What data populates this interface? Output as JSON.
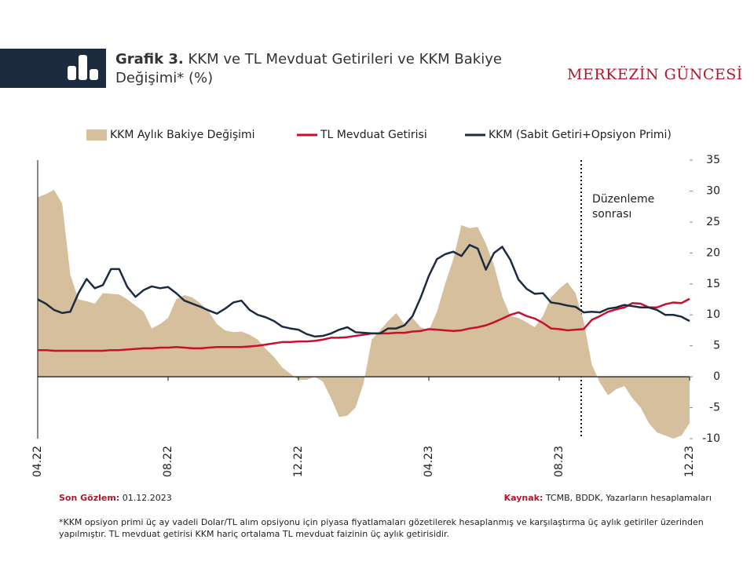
{
  "header": {
    "title_prefix": "Grafik 3.",
    "title": "KKM ve TL Mevduat Getirileri ve KKM Bakiye Değişimi* (%)",
    "brand": "MERKEZİN GÜNCESİ"
  },
  "chart_data": {
    "type": "line",
    "categories": [
      "04.22",
      null,
      null,
      null,
      null,
      null,
      null,
      null,
      null,
      null,
      null,
      null,
      null,
      null,
      null,
      null,
      "08.22",
      null,
      null,
      null,
      null,
      null,
      null,
      null,
      null,
      null,
      null,
      null,
      null,
      null,
      null,
      null,
      "12.22",
      null,
      null,
      null,
      null,
      null,
      null,
      null,
      null,
      null,
      null,
      null,
      null,
      null,
      null,
      null,
      "04.23",
      null,
      null,
      null,
      null,
      null,
      null,
      null,
      null,
      null,
      null,
      null,
      null,
      null,
      null,
      null,
      "08.23",
      null,
      null,
      null,
      null,
      null,
      null,
      null,
      null,
      null,
      null,
      null,
      null,
      null,
      null,
      null,
      "12.23"
    ],
    "series": [
      {
        "name": "KKM Aylık Bakiye Değişimi",
        "kind": "area",
        "color": "#d5bf9c",
        "values": [
          29,
          29.5,
          30.2,
          28,
          16.5,
          12.5,
          12.2,
          11.8,
          13.5,
          13.4,
          13.3,
          12.5,
          11.5,
          10.5,
          7.8,
          8.5,
          9.5,
          12.5,
          13.2,
          12.8,
          11.8,
          10.5,
          8.5,
          7.5,
          7.2,
          7.3,
          6.8,
          6,
          4.5,
          3.2,
          1.5,
          0.5,
          -0.5,
          -0.5,
          0,
          -0.8,
          -3.5,
          -6.5,
          -6.3,
          -5,
          -1,
          6,
          7.5,
          9,
          10.3,
          8.5,
          9.5,
          8,
          7.5,
          10.5,
          15,
          19,
          24.5,
          24,
          24.2,
          21.5,
          18,
          13,
          9.8,
          9.5,
          8.8,
          8,
          9.8,
          12.8,
          14.2,
          15.3,
          13.5,
          9,
          2,
          -1,
          -3,
          -2,
          -1.5,
          -3.5,
          -5,
          -7.5,
          -9,
          -9.5,
          -10,
          -9.5,
          -7.5
        ]
      },
      {
        "name": "TL Mevduat Getirisi",
        "kind": "line",
        "color": "#c8102e",
        "values": [
          4.3,
          4.3,
          4.2,
          4.2,
          4.2,
          4.2,
          4.2,
          4.2,
          4.2,
          4.3,
          4.3,
          4.4,
          4.5,
          4.6,
          4.6,
          4.7,
          4.7,
          4.8,
          4.7,
          4.6,
          4.6,
          4.7,
          4.8,
          4.8,
          4.8,
          4.8,
          4.9,
          5.0,
          5.2,
          5.4,
          5.6,
          5.6,
          5.7,
          5.7,
          5.8,
          6.0,
          6.3,
          6.3,
          6.4,
          6.6,
          6.8,
          7.0,
          7.0,
          7.0,
          7.1,
          7.1,
          7.3,
          7.4,
          7.7,
          7.6,
          7.5,
          7.4,
          7.5,
          7.8,
          8.0,
          8.3,
          8.8,
          9.4,
          10.0,
          10.4,
          9.8,
          9.4,
          8.7,
          7.8,
          7.7,
          7.5,
          7.6,
          7.7,
          9.2,
          9.8,
          10.5,
          10.9,
          11.2,
          11.9,
          11.8,
          11.2,
          11.2,
          11.7,
          12.0,
          11.9,
          12.6
        ]
      },
      {
        "name": "KKM (Sabit Getiri+Opsiyon Primi)",
        "kind": "line",
        "color": "#1c2b40",
        "values": [
          12.5,
          11.8,
          10.8,
          10.3,
          10.5,
          13.5,
          15.8,
          14.3,
          14.8,
          17.4,
          17.4,
          14.5,
          12.9,
          14.0,
          14.6,
          14.3,
          14.5,
          13.5,
          12.3,
          11.8,
          11.3,
          10.7,
          10.2,
          11.0,
          12.0,
          12.3,
          10.8,
          10.0,
          9.6,
          9.0,
          8.1,
          7.8,
          7.6,
          6.9,
          6.5,
          6.6,
          7.0,
          7.6,
          8.0,
          7.2,
          7.1,
          7.0,
          7.0,
          7.8,
          7.8,
          8.3,
          9.8,
          12.8,
          16.3,
          19.0,
          19.8,
          20.2,
          19.5,
          21.3,
          20.7,
          17.3,
          20.0,
          21.0,
          18.9,
          15.7,
          14.2,
          13.4,
          13.5,
          12.0,
          11.8,
          11.5,
          11.3,
          10.4,
          10.5,
          10.4,
          11.0,
          11.2,
          11.6,
          11.4,
          11.2,
          11.2,
          10.8,
          10.0,
          10.0,
          9.7,
          9.0
        ]
      }
    ],
    "ylim": [
      -10,
      35
    ],
    "yticks": [
      -10,
      -5,
      0,
      5,
      10,
      15,
      20,
      25,
      30,
      35
    ],
    "annotation": [
      "Düzenleme",
      "sonrası"
    ],
    "legend": "top"
  },
  "footer": {
    "observation_label": "Son Gözlem:",
    "observation": "01.12.2023",
    "source_label": "Kaynak:",
    "source": "TCMB, BDDK, Yazarların hesaplamaları",
    "note": "*KKM opsiyon primi üç ay vadeli Dolar/TL alım opsiyonu için piyasa fiyatlamaları gözetilerek hesaplanmış ve karşılaştırma üç aylık getiriler üzerinden yapılmıştır. TL mevduat getirisi KKM hariç ortalama TL mevduat faizinin üç aylık getirisidir."
  }
}
